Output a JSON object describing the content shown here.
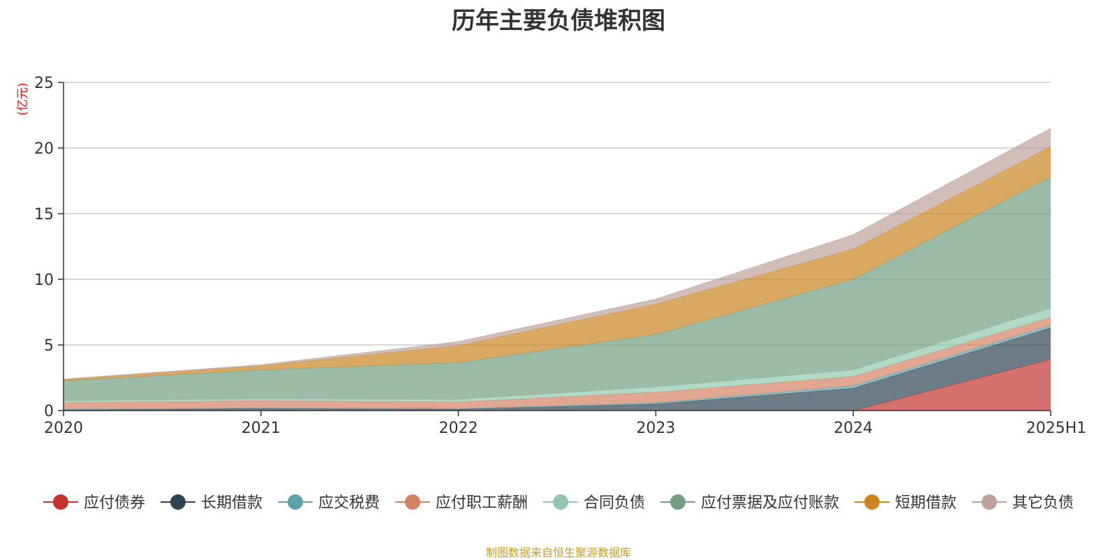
{
  "chart_data": {
    "type": "area",
    "stacked": true,
    "title": "历年主要负债堆积图",
    "unit_label": "(亿元)",
    "categories": [
      "2020",
      "2021",
      "2022",
      "2023",
      "2024",
      "2025H1"
    ],
    "ylim": [
      0,
      25
    ],
    "yticks": [
      0,
      5,
      10,
      15,
      20,
      25
    ],
    "grid": true,
    "legend_position": "bottom",
    "series": [
      {
        "name": "应付债券",
        "values": [
          0,
          0,
          0,
          0,
          0,
          3.9
        ],
        "color": "#c23531"
      },
      {
        "name": "长期借款",
        "values": [
          0.05,
          0.15,
          0.1,
          0.5,
          1.7,
          2.4
        ],
        "color": "#2f4554"
      },
      {
        "name": "应交税费",
        "values": [
          0.05,
          0.05,
          0.05,
          0.1,
          0.2,
          0.2
        ],
        "color": "#61a0a8"
      },
      {
        "name": "应付职工薪酬",
        "values": [
          0.5,
          0.55,
          0.5,
          0.8,
          0.7,
          0.6
        ],
        "color": "#d48265"
      },
      {
        "name": "合同负债",
        "values": [
          0.15,
          0.15,
          0.2,
          0.4,
          0.5,
          0.7
        ],
        "color": "#91c7ae"
      },
      {
        "name": "应付票据及应付账款",
        "values": [
          1.5,
          2.2,
          2.8,
          4.0,
          6.9,
          10.0
        ],
        "color": "#749f83"
      },
      {
        "name": "短期借款",
        "values": [
          0.1,
          0.3,
          1.3,
          2.3,
          2.3,
          2.3
        ],
        "color": "#ca8622"
      },
      {
        "name": "其它负债",
        "values": [
          0.05,
          0.1,
          0.3,
          0.4,
          1.1,
          1.4
        ],
        "color": "#bda29a"
      }
    ],
    "axis_color": "#333333",
    "grid_color": "#cccccc",
    "unit_color": "#ff0000"
  },
  "footer": {
    "source_text": "制图数据来自恒生聚源数据库",
    "source_color": "#c59a28"
  }
}
